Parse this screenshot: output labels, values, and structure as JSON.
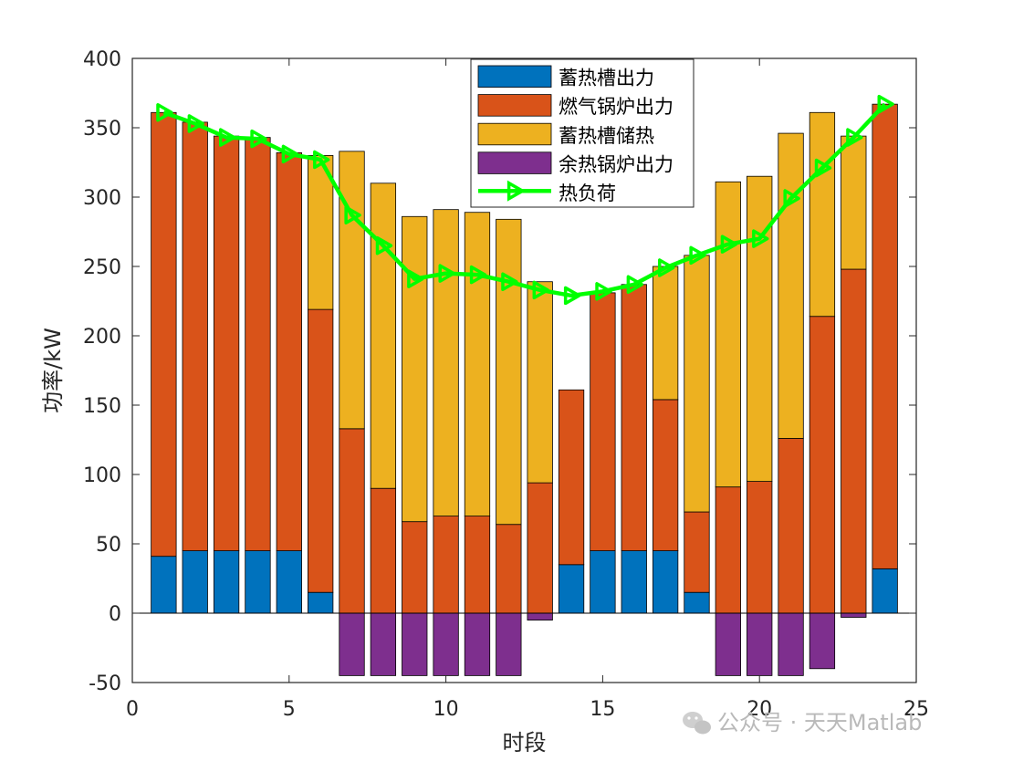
{
  "chart_data": {
    "type": "bar",
    "stacked": true,
    "xlabel": "时段",
    "ylabel": "功率/kW",
    "xlim": [
      0,
      25
    ],
    "ylim": [
      -50,
      400
    ],
    "xticks": [
      "0",
      "5",
      "10",
      "15",
      "20",
      "25"
    ],
    "yticks": [
      "-50",
      "0",
      "50",
      "100",
      "150",
      "200",
      "250",
      "300",
      "350",
      "400"
    ],
    "legend_position": "top-center",
    "grid": false,
    "categories": [
      1,
      2,
      3,
      4,
      5,
      6,
      7,
      8,
      9,
      10,
      11,
      12,
      13,
      14,
      15,
      16,
      17,
      18,
      19,
      20,
      21,
      22,
      23,
      24
    ],
    "series": [
      {
        "name": "蓄热槽出力",
        "color": "#0072BD",
        "values": [
          41,
          45,
          45,
          45,
          45,
          15,
          0,
          0,
          0,
          0,
          0,
          0,
          0,
          35,
          45,
          45,
          45,
          15,
          0,
          0,
          0,
          0,
          0,
          32
        ]
      },
      {
        "name": "燃气锅炉出力",
        "color": "#D95319",
        "values": [
          320,
          309,
          299,
          298,
          287,
          204,
          133,
          90,
          66,
          70,
          70,
          64,
          94,
          126,
          186,
          192,
          109,
          58,
          91,
          95,
          126,
          214,
          248,
          335
        ]
      },
      {
        "name": "蓄热槽储热",
        "color": "#EDB120",
        "values": [
          0,
          0,
          0,
          0,
          0,
          111,
          200,
          220,
          220,
          221,
          219,
          220,
          145,
          0,
          0,
          0,
          96,
          185,
          220,
          220,
          220,
          147,
          96,
          0
        ]
      },
      {
        "name": "余热锅炉出力",
        "color": "#7E2F8E",
        "values": [
          0,
          0,
          0,
          0,
          0,
          0,
          -45,
          -45,
          -45,
          -45,
          -45,
          -45,
          -5,
          0,
          0,
          0,
          0,
          0,
          -45,
          -45,
          -45,
          -40,
          -3,
          0
        ]
      }
    ],
    "line": {
      "name": "热负荷",
      "color": "#00FF00",
      "values": [
        361,
        353,
        343,
        342,
        331,
        327,
        287,
        265,
        241,
        245,
        244,
        239,
        233,
        229,
        232,
        237,
        249,
        258,
        266,
        270,
        299,
        321,
        343,
        367
      ]
    }
  },
  "watermark": "公众号 · 天天Matlab"
}
